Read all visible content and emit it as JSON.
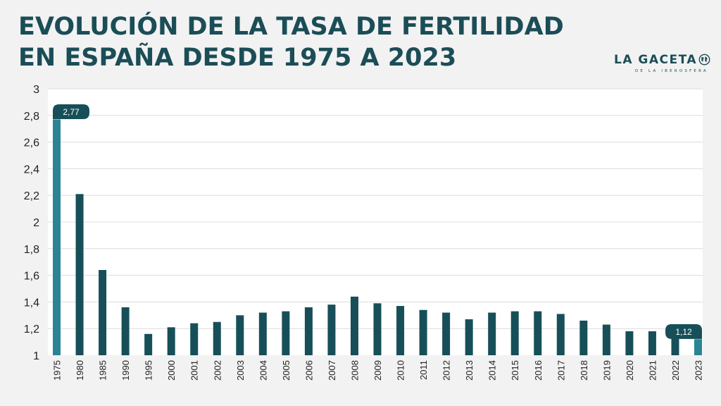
{
  "title": {
    "line1": "EVOLUCIÓN DE LA TASA DE FERTILIDAD",
    "line2": "EN ESPAÑA DESDE 1975 A 2023"
  },
  "logo": {
    "main": "LA GACETA",
    "sub": "DE LA IBEROSFERA",
    "icon": "globe-icon"
  },
  "colors": {
    "bar": "#174f59",
    "highlight_bar": "#2a8494",
    "title": "#1b4d57",
    "background": "#f2f2f2",
    "plot": "#ffffff",
    "grid": "#dcdcdc"
  },
  "chart_data": {
    "type": "bar",
    "title": "EVOLUCIÓN DE LA TASA DE FERTILIDAD EN ESPAÑA DESDE 1975 A 2023",
    "xlabel": "",
    "ylabel": "",
    "ylim": [
      1,
      3
    ],
    "yticks": [
      "1",
      "1,2",
      "1,4",
      "1,6",
      "1,8",
      "2",
      "2,2",
      "2,4",
      "2,6",
      "2,8",
      "3"
    ],
    "grid": true,
    "categories": [
      "1975",
      "1980",
      "1985",
      "1990",
      "1995",
      "2000",
      "2001",
      "2002",
      "2003",
      "2004",
      "2005",
      "2006",
      "2007",
      "2008",
      "2009",
      "2010",
      "2011",
      "2012",
      "2013",
      "2014",
      "2015",
      "2016",
      "2017",
      "2018",
      "2019",
      "2020",
      "2021",
      "2022",
      "2023"
    ],
    "values": [
      2.77,
      2.21,
      1.64,
      1.36,
      1.16,
      1.21,
      1.24,
      1.25,
      1.3,
      1.32,
      1.33,
      1.36,
      1.38,
      1.44,
      1.39,
      1.37,
      1.34,
      1.32,
      1.27,
      1.32,
      1.33,
      1.33,
      1.31,
      1.26,
      1.23,
      1.18,
      1.18,
      1.16,
      1.12
    ],
    "highlighted": [
      "1975",
      "2023"
    ],
    "annotations": [
      {
        "category": "1975",
        "text": "2,77"
      },
      {
        "category": "2023",
        "text": "1,12"
      }
    ]
  }
}
